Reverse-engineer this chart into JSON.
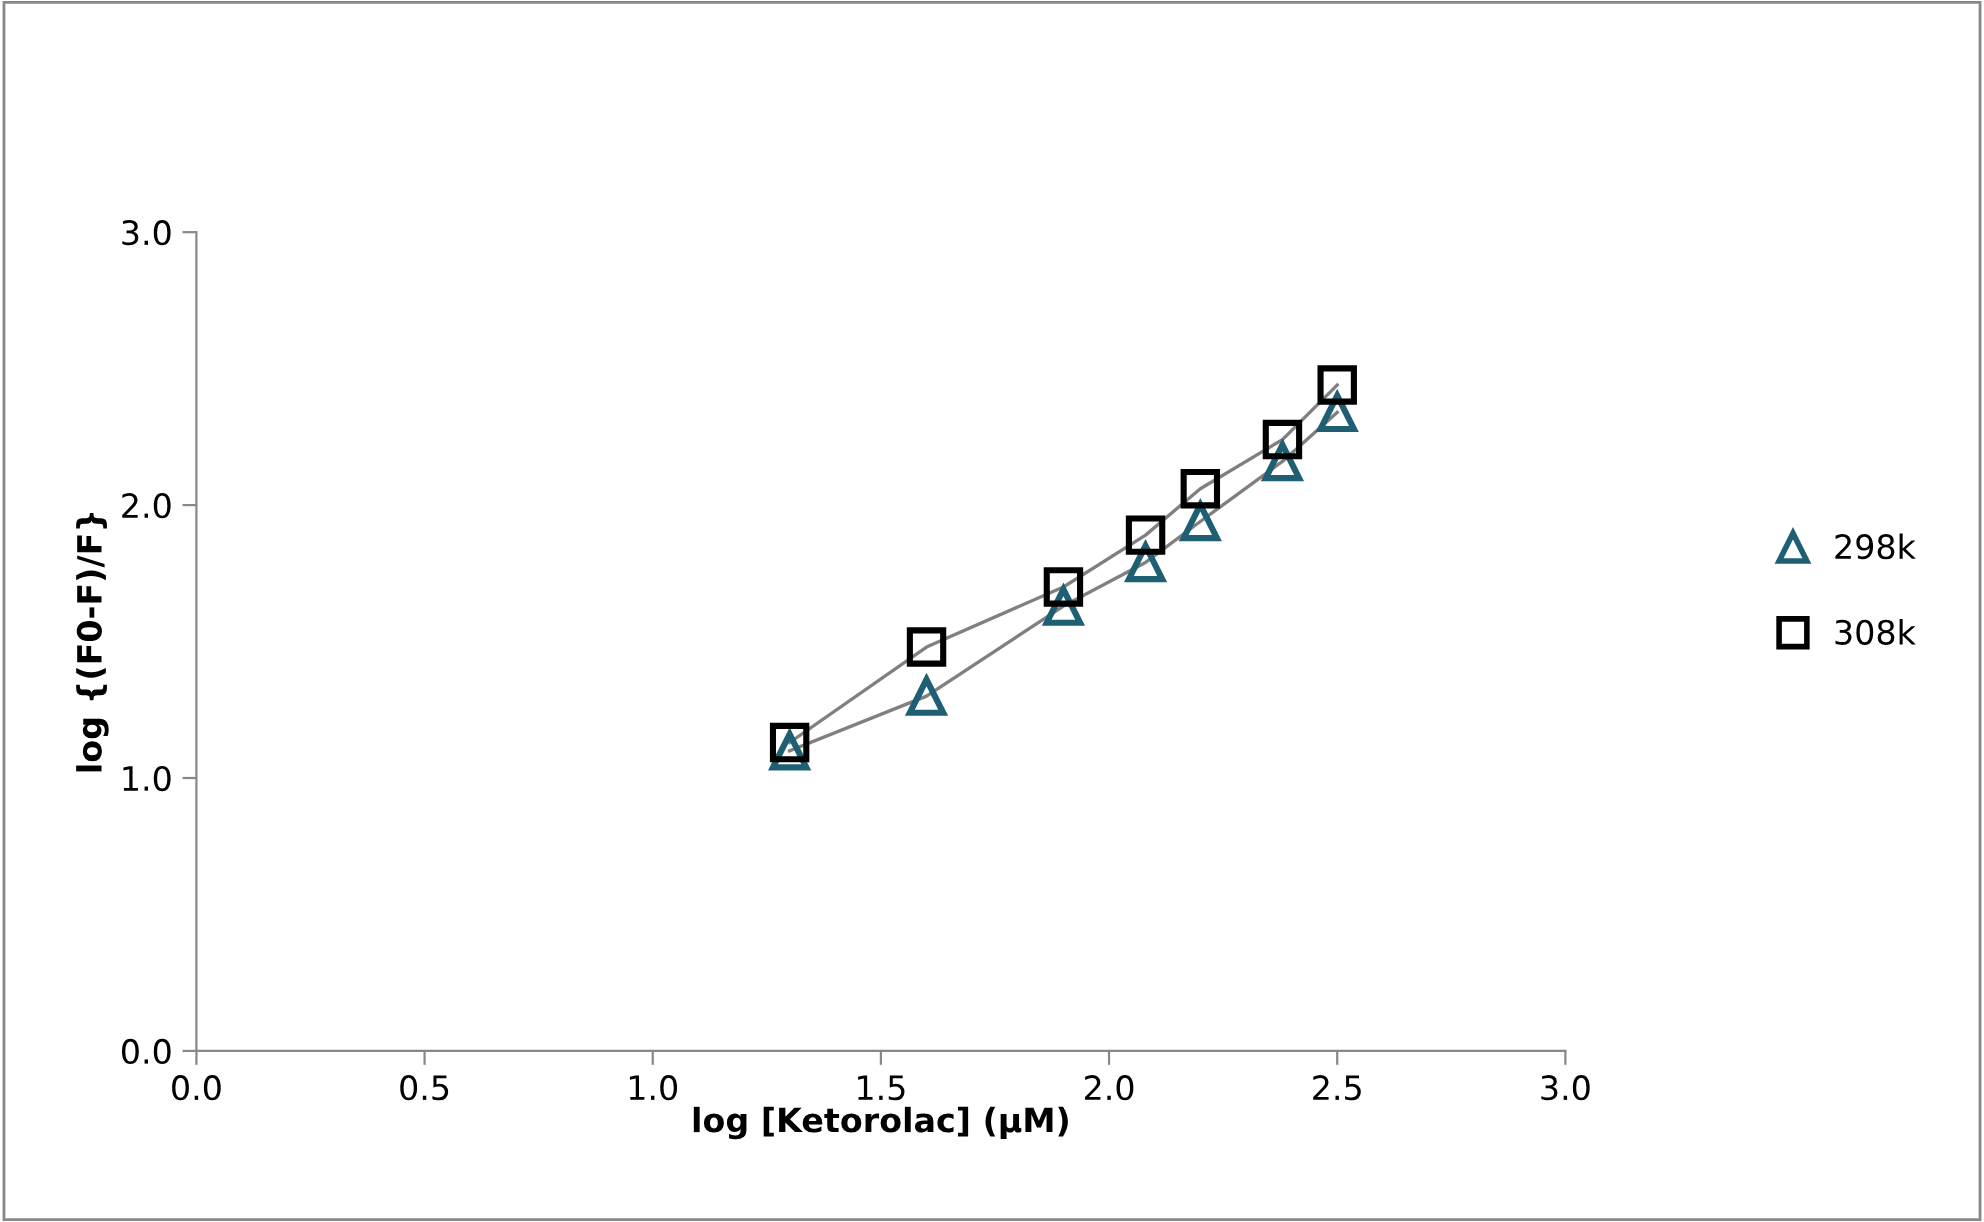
{
  "chart_data": {
    "type": "line",
    "xlabel": "log [Ketorolac] (µM)",
    "ylabel": "log {(F0-F)/F}",
    "x": [
      1.3,
      1.6,
      1.9,
      2.08,
      2.2,
      2.38,
      2.5
    ],
    "series": [
      {
        "name": "298k",
        "color": "#1f5f73",
        "marker": "triangle",
        "values": [
          1.1,
          1.3,
          1.63,
          1.79,
          1.94,
          2.16,
          2.34
        ]
      },
      {
        "name": "308k",
        "color": "#000000",
        "marker": "square",
        "values": [
          1.13,
          1.48,
          1.7,
          1.89,
          2.06,
          2.24,
          2.44
        ]
      }
    ],
    "xlim": [
      0,
      3
    ],
    "ylim": [
      0,
      3
    ],
    "xticks": [
      {
        "value": 0,
        "label": "0.0"
      },
      0.5,
      {
        "value": 1,
        "label": "1.0"
      },
      1.5,
      {
        "value": 2,
        "label": "2.0"
      },
      2.5,
      {
        "value": 3,
        "label": "3.0"
      }
    ],
    "yticks": [
      {
        "value": 0,
        "label": "0.0"
      },
      {
        "value": 1,
        "label": "1.0"
      },
      {
        "value": 2,
        "label": "2.0"
      },
      {
        "value": 3,
        "label": "3.0"
      }
    ],
    "grid": false,
    "legend": "right"
  }
}
